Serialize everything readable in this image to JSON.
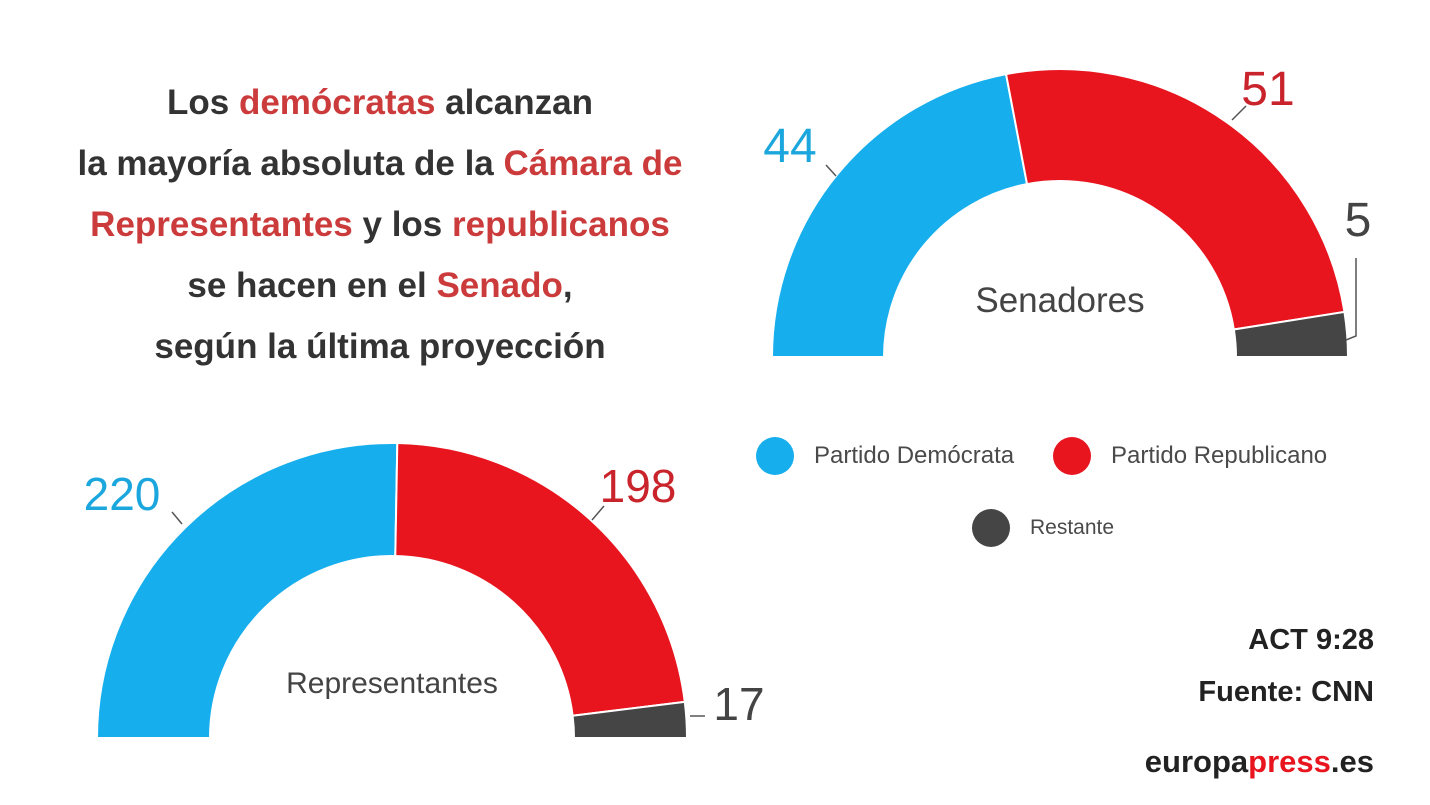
{
  "headline": {
    "segments": [
      {
        "text": "Los ",
        "hl": false
      },
      {
        "text": "demócratas",
        "hl": true
      },
      {
        "text": " alcanzan",
        "hl": false
      },
      {
        "br": true
      },
      {
        "text": "la mayoría absoluta de la ",
        "hl": false
      },
      {
        "text": "Cámara de",
        "hl": true
      },
      {
        "br": true
      },
      {
        "text": "Representantes",
        "hl": true
      },
      {
        "text": " y los ",
        "hl": false
      },
      {
        "text": "republicanos",
        "hl": true
      },
      {
        "br": true
      },
      {
        "text": "se hacen en el ",
        "hl": false
      },
      {
        "text": "Senado",
        "hl": true
      },
      {
        "text": ",",
        "hl": false
      },
      {
        "br": true
      },
      {
        "text": "según la última proyección",
        "hl": false
      }
    ]
  },
  "colors": {
    "democrat": "#16aeec",
    "republican": "#e8151f",
    "remaining": "#454545",
    "highlight": "#cc3b3b"
  },
  "legend": [
    {
      "label": "Partido Demócrata",
      "color": "#16aeec"
    },
    {
      "label": "Partido Republicano",
      "color": "#e8151f"
    },
    {
      "label": "Restante",
      "color": "#454545"
    }
  ],
  "chart_data": [
    {
      "type": "pie",
      "title": "Senadores",
      "categories": [
        "Partido Demócrata",
        "Partido Republicano",
        "Restante"
      ],
      "values": [
        44,
        51,
        5
      ],
      "labels": [
        "44",
        "51",
        "5"
      ],
      "shape": "semicircle-donut"
    },
    {
      "type": "pie",
      "title": "Representantes",
      "categories": [
        "Partido Demócrata",
        "Partido Republicano",
        "Restante"
      ],
      "values": [
        220,
        198,
        17
      ],
      "labels": [
        "220",
        "198",
        "17"
      ],
      "shape": "semicircle-donut"
    }
  ],
  "footer": {
    "act": "ACT 9:28",
    "source": "Fuente: CNN",
    "brand_pre": "europa",
    "brand_hl": "press",
    "brand_post": ".es"
  }
}
